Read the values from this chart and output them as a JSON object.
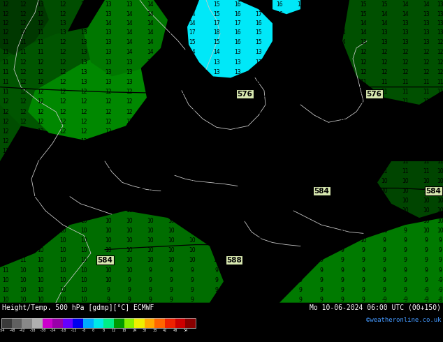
{
  "title_left": "Height/Temp. 500 hPa [gdmp][°C] ECMWF",
  "title_right": "Mo 10-06-2024 06:00 UTC (00+150)",
  "credit": "©weatheronline.co.uk",
  "bg_color_dark": "#004d00",
  "bg_color_mid": "#006600",
  "bg_color_light": "#009900",
  "cyan_color": "#00e8f8",
  "white_line_color": "#c8c8c8",
  "black_line_color": "#000000",
  "contour_label_bg": "#d8e8b0",
  "bottom_bar_color": "#000000",
  "credit_color": "#4499ff",
  "colorbar_colors": [
    "#3a3a3a",
    "#606060",
    "#888888",
    "#b0b0b0",
    "#cc00cc",
    "#9900aa",
    "#6600ff",
    "#0000ee",
    "#00aaff",
    "#00e8e8",
    "#00ee88",
    "#009900",
    "#88ee00",
    "#eeee00",
    "#ffaa00",
    "#ff6600",
    "#ee2200",
    "#cc0000",
    "#880000"
  ],
  "colorbar_tick_labels": [
    "-54",
    "-48",
    "-42",
    "-38",
    "-30",
    "-24",
    "-18",
    "-12",
    "-8",
    "0",
    "8",
    "12",
    "18",
    "24",
    "30",
    "38",
    "42",
    "48",
    "54"
  ]
}
